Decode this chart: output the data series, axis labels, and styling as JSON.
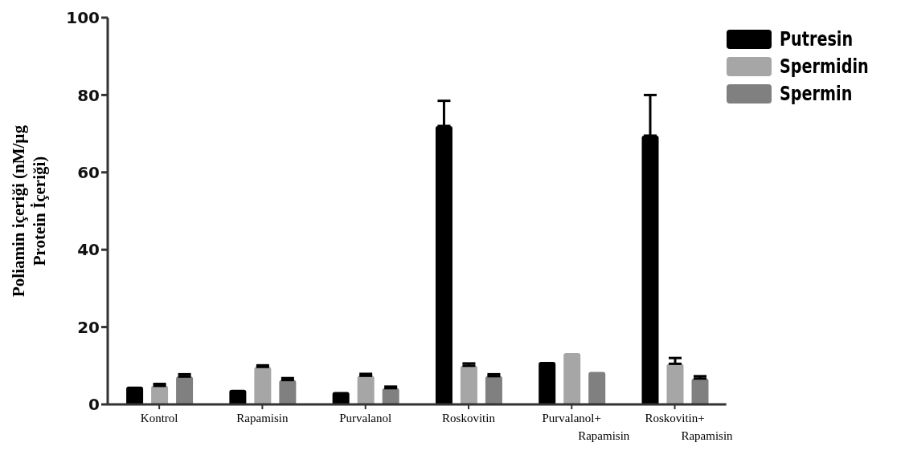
{
  "chart_data": {
    "type": "bar",
    "ylabel": "Poliamin içeriği (nM/µg\nProtein İçeriği)",
    "categories": [
      "Kontrol",
      "Rapamisin",
      "Purvalanol",
      "Roskovitin",
      "Purvalanol+\nRapamisin",
      "Roskovitin+\nRapamisin"
    ],
    "series": [
      {
        "name": "Putresin",
        "color": "#000000",
        "values": [
          4.6,
          3.8,
          3.2,
          72,
          11,
          69.5
        ],
        "errors": [
          null,
          null,
          null,
          6.5,
          null,
          10.5
        ]
      },
      {
        "name": "Spermidin",
        "color": "#a6a6a6",
        "values": [
          4.8,
          9.7,
          7.4,
          10,
          13.3,
          10.5
        ],
        "errors": [
          0.5,
          0.4,
          0.5,
          0.6,
          null,
          1.5
        ]
      },
      {
        "name": "Spermin",
        "color": "#808080",
        "values": [
          7.2,
          6.3,
          4.2,
          7.3,
          8.4,
          6.7
        ],
        "errors": [
          0.6,
          0.5,
          0.4,
          0.5,
          null,
          0.6
        ]
      }
    ],
    "ylim": [
      0,
      100
    ],
    "yticks": [
      0,
      20,
      40,
      60,
      80,
      100
    ],
    "grid": false,
    "legend": "top right"
  }
}
